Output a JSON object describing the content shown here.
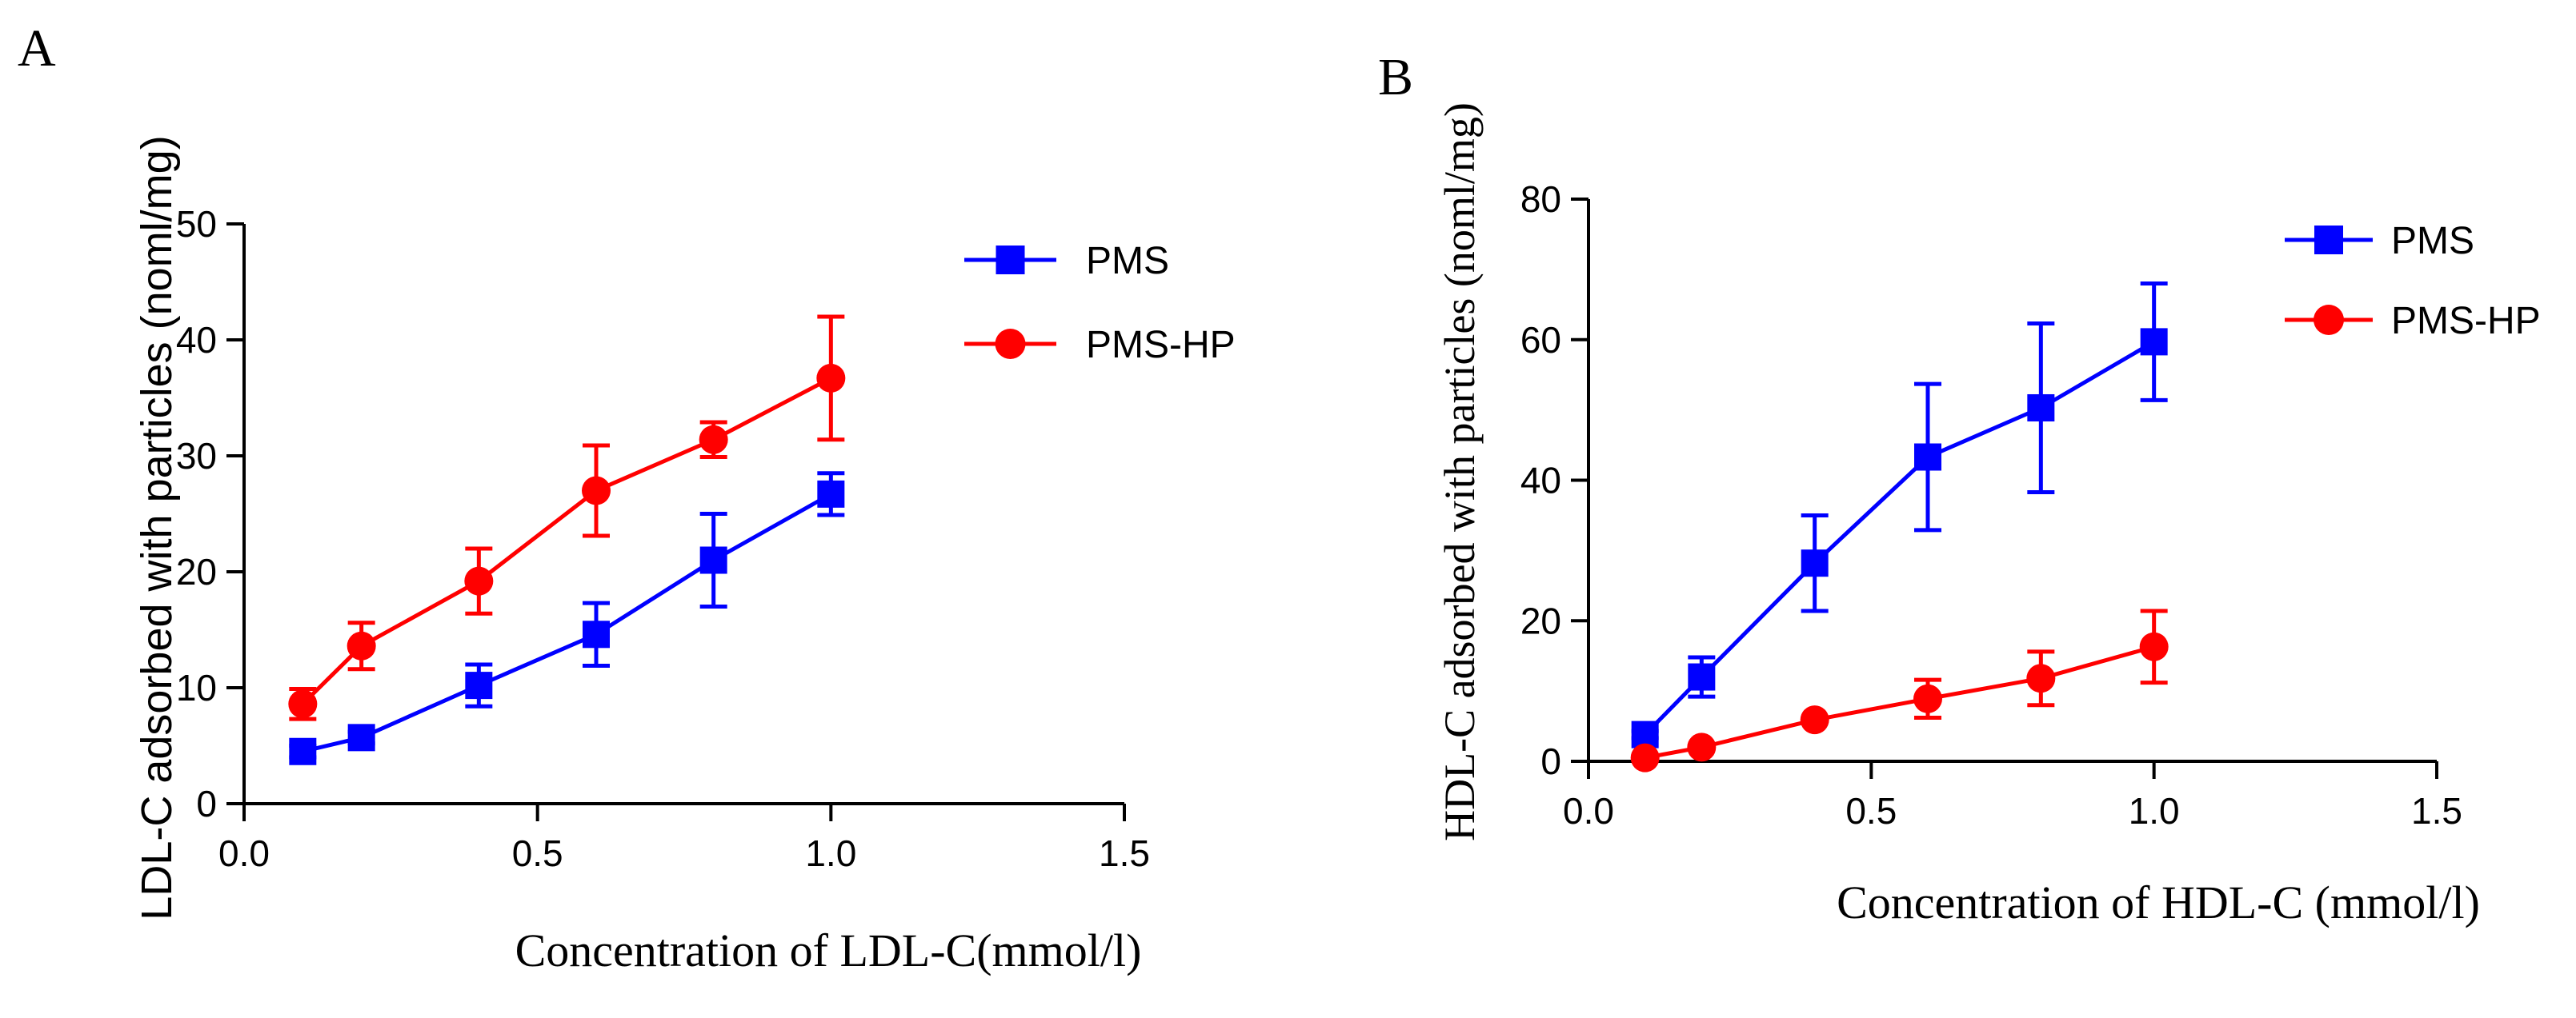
{
  "chart_data": [
    {
      "type": "line",
      "panel_label": "A",
      "title": "",
      "xlabel": "Concentration of LDL-C(mmol/l)",
      "ylabel": "LDL-C adsorbed with particles (noml/mg)",
      "xlim": [
        0.0,
        1.5
      ],
      "ylim": [
        0,
        50
      ],
      "xticks": [
        "0.0",
        "0.5",
        "1.0",
        "1.5"
      ],
      "yticks": [
        "0",
        "10",
        "20",
        "30",
        "40",
        "50"
      ],
      "legend_position": "top-right",
      "series": [
        {
          "name": "PMS",
          "color": "#0000ff",
          "marker": "square",
          "x": [
            0.1,
            0.2,
            0.4,
            0.6,
            0.8,
            1.0
          ],
          "y": [
            4.5,
            5.7,
            10.2,
            14.6,
            21.0,
            26.7
          ],
          "error": [
            0.5,
            0.5,
            1.8,
            2.7,
            4.0,
            1.8
          ]
        },
        {
          "name": "PMS-HP",
          "color": "#ff0000",
          "marker": "circle",
          "x": [
            0.1,
            0.2,
            0.4,
            0.6,
            0.8,
            1.0
          ],
          "y": [
            8.6,
            13.6,
            19.2,
            27.0,
            31.4,
            36.7
          ],
          "error": [
            1.3,
            2.0,
            2.8,
            3.9,
            1.5,
            5.3
          ]
        }
      ]
    },
    {
      "type": "line",
      "panel_label": "B",
      "title": "",
      "xlabel": "Concentration of HDL-C (mmol/l)",
      "ylabel": "HDL-C adsorbed with particles (noml/mg)",
      "xlim": [
        0.0,
        1.5
      ],
      "ylim": [
        0,
        80
      ],
      "xticks": [
        "0.0",
        "0.5",
        "1.0",
        "1.5"
      ],
      "yticks": [
        "0",
        "20",
        "40",
        "60",
        "80"
      ],
      "legend_position": "top-right",
      "series": [
        {
          "name": "PMS",
          "color": "#0000ff",
          "marker": "square",
          "x": [
            0.1,
            0.2,
            0.4,
            0.6,
            0.8,
            1.0
          ],
          "y": [
            3.8,
            12.0,
            28.2,
            43.3,
            50.3,
            59.7
          ],
          "error": [
            0.5,
            2.8,
            6.8,
            10.4,
            12.0,
            8.3
          ]
        },
        {
          "name": "PMS-HP",
          "color": "#ff0000",
          "marker": "circle",
          "x": [
            0.1,
            0.2,
            0.4,
            0.6,
            0.8,
            1.0
          ],
          "y": [
            0.5,
            2.0,
            5.9,
            8.9,
            11.8,
            16.3
          ],
          "error": [
            0.0,
            0.0,
            0.0,
            2.7,
            3.8,
            5.1
          ]
        }
      ]
    }
  ]
}
